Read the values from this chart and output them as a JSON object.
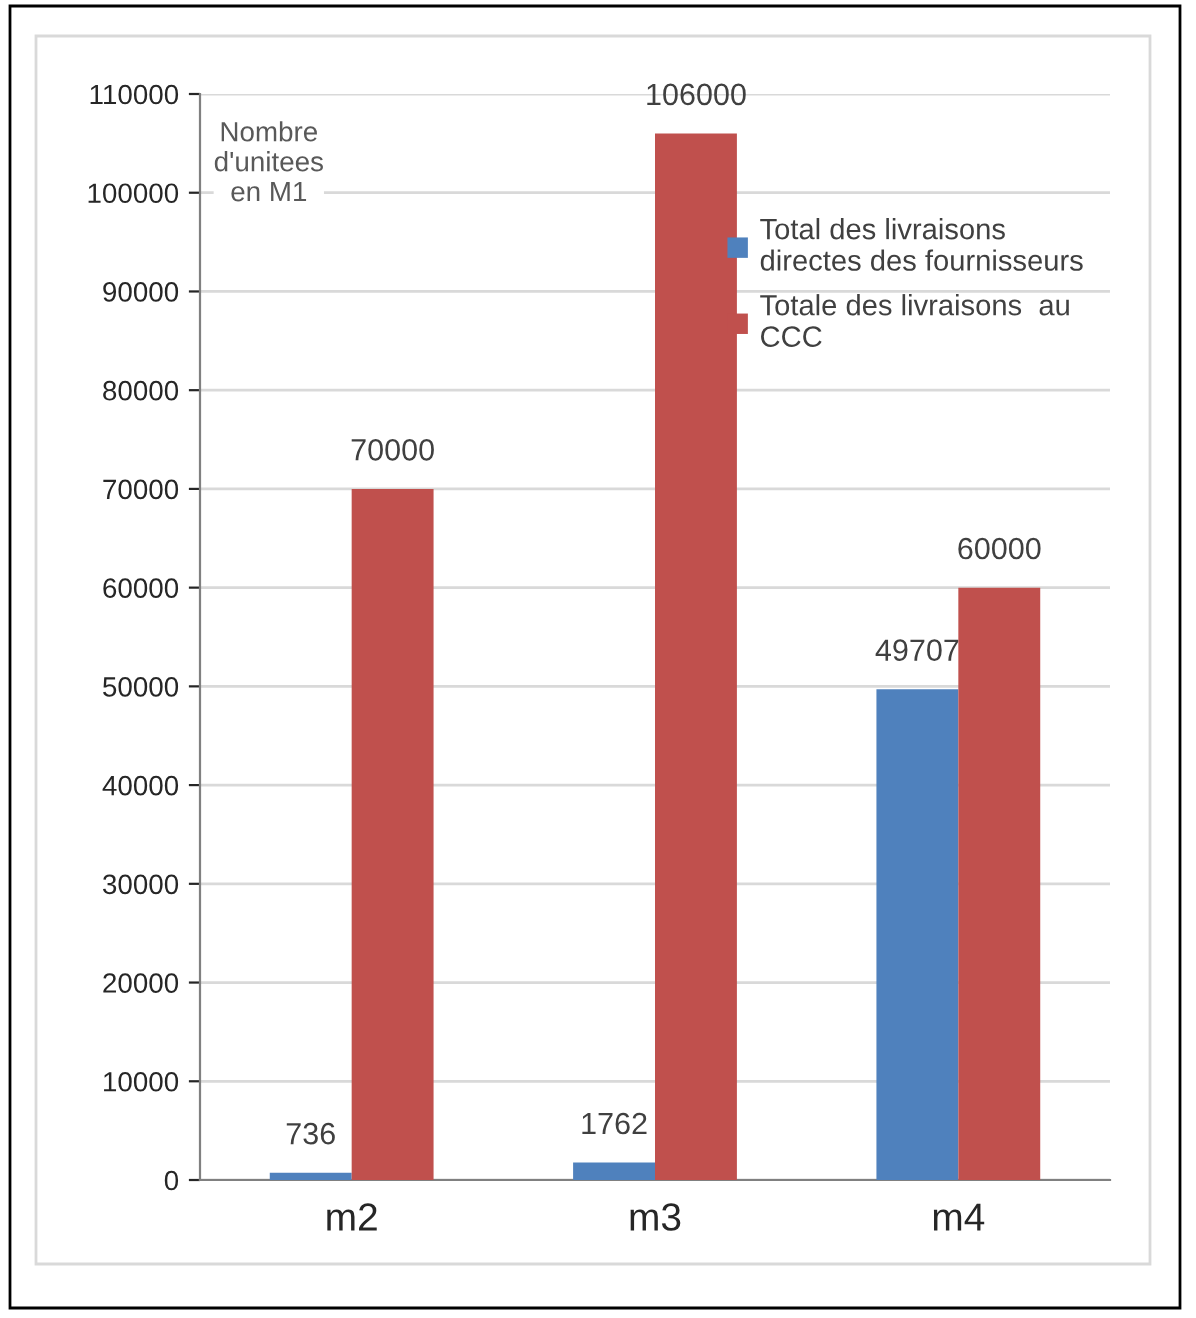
{
  "chart_data": {
    "type": "bar",
    "ylabel": "Nombre\nd'unitees\nen M1",
    "categories": [
      "m2",
      "m3",
      "m4"
    ],
    "series": [
      {
        "name": "Total des livraisons\ndirectes des fournisseurs",
        "color": "#4f81bd",
        "values": [
          736,
          1762,
          49707
        ]
      },
      {
        "name": "Totale des livraisons  au\nCCC",
        "color": "#c0504d",
        "values": [
          70000,
          106000,
          60000
        ]
      }
    ],
    "ylim": [
      0,
      110000
    ],
    "yticks": [
      0,
      10000,
      20000,
      30000,
      40000,
      50000,
      60000,
      70000,
      80000,
      90000,
      100000,
      110000
    ],
    "grid": "y",
    "legend": "top right",
    "data_labels": true
  }
}
